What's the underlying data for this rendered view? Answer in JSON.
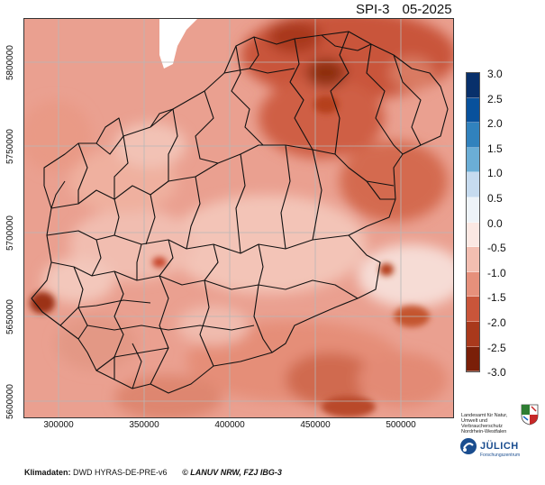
{
  "header": {
    "index": "SPI-3",
    "date": "05-2025"
  },
  "axes": {
    "y_ticks": [
      {
        "label": "5800000",
        "value": 5800000
      },
      {
        "label": "5750000",
        "value": 5750000
      },
      {
        "label": "5700000",
        "value": 5700000
      },
      {
        "label": "5650000",
        "value": 5650000
      },
      {
        "label": "5600000",
        "value": 5600000
      }
    ],
    "x_ticks": [
      {
        "label": "300000",
        "value": 300000
      },
      {
        "label": "350000",
        "value": 350000
      },
      {
        "label": "400000",
        "value": 400000
      },
      {
        "label": "450000",
        "value": 450000
      },
      {
        "label": "500000",
        "value": 500000
      }
    ],
    "x_range": [
      280000,
      530000
    ],
    "y_range": [
      5575000,
      5820000
    ]
  },
  "legend": {
    "labels": [
      "3.0",
      "2.5",
      "2.0",
      "1.5",
      "1.0",
      "0.5",
      "0.0",
      "-0.5",
      "-1.0",
      "-1.5",
      "-2.0",
      "-2.5",
      "-3.0"
    ],
    "colors": [
      "#08306b",
      "#08519c",
      "#2171b5",
      "#4292c6",
      "#9ecae1",
      "#c6dbef",
      "#eef3f8",
      "#fbe4df",
      "#f2b4a6",
      "#e67f68",
      "#c94a2c",
      "#a0300f",
      "#6b1a06"
    ]
  },
  "footer": {
    "label": "Klimadaten:",
    "source": "DWD HYRAS-DE-PRE-v6",
    "copyright": "© LANUV NRW, FZJ IBG-3"
  },
  "logos": {
    "lanuv_text": "Landesamt für Natur, Umwelt und Verbraucherschutz Nordrhein-Westfalen",
    "juelich_name": "JÜLICH",
    "juelich_sub": "Forschungszentrum"
  }
}
